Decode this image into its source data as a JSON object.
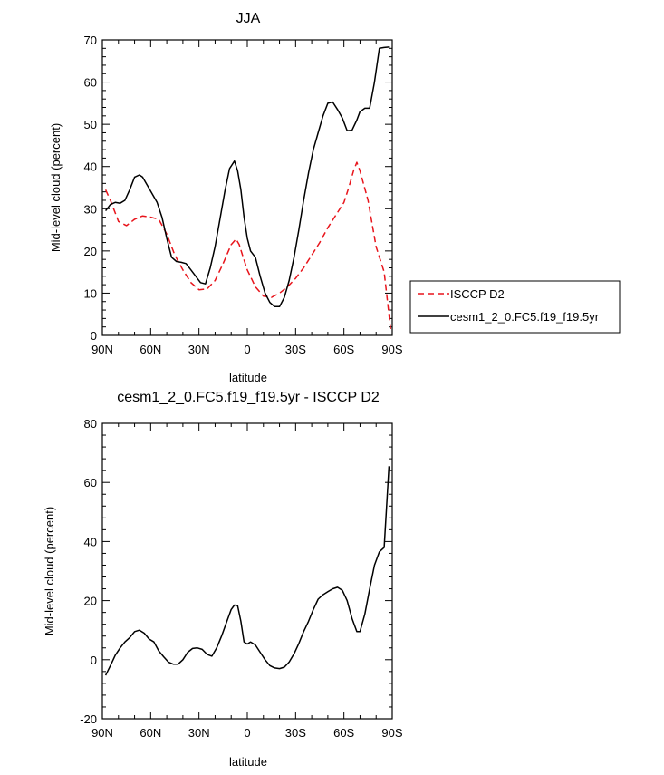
{
  "chart_data": [
    {
      "type": "line",
      "title": "JJA",
      "xlabel": "latitude",
      "ylabel": "Mid-level cloud (percent)",
      "xlim": [
        90,
        -90
      ],
      "ylim": [
        0,
        70
      ],
      "x_ticks": [
        90,
        60,
        30,
        0,
        -30,
        -60,
        -90
      ],
      "x_tick_labels": [
        "90N",
        "60N",
        "30N",
        "0",
        "30S",
        "60S",
        "90S"
      ],
      "y_ticks": [
        0,
        10,
        20,
        30,
        40,
        50,
        60,
        70
      ],
      "y_tick_labels": [
        "0",
        "10",
        "20",
        "30",
        "40",
        "50",
        "60",
        "70"
      ],
      "legend_position": "right",
      "series": [
        {
          "name": "ISCCP D2",
          "color": "#e8141b",
          "dash": "dashed",
          "x": [
            88,
            85,
            80,
            75,
            70,
            65,
            60,
            55,
            50,
            45,
            40,
            35,
            30,
            25,
            20,
            15,
            10,
            7,
            5,
            3,
            0,
            -5,
            -10,
            -15,
            -20,
            -25,
            -30,
            -35,
            -40,
            -45,
            -50,
            -55,
            -60,
            -63,
            -66,
            -68,
            -70,
            -75,
            -80,
            -85,
            -89
          ],
          "y": [
            34.5,
            32,
            27,
            26,
            27.5,
            28.3,
            28,
            27.5,
            24,
            19,
            15.5,
            12.5,
            10.8,
            11,
            13,
            17,
            21.5,
            22.8,
            21.5,
            19,
            15.5,
            11.5,
            9.3,
            9,
            10,
            11.5,
            13.5,
            16,
            19,
            22,
            25.5,
            28.5,
            31.5,
            35,
            39,
            41,
            39,
            32,
            21,
            15,
            1.5
          ]
        },
        {
          "name": "cesm1_2_0.FC5.f19_f19.5yr",
          "color": "#000000",
          "dash": "solid",
          "x": [
            88,
            85,
            82,
            79,
            76,
            73,
            70,
            67,
            65,
            62,
            59,
            56,
            53,
            50,
            47,
            44,
            41,
            38,
            35,
            32,
            29,
            26,
            23,
            20,
            17,
            14,
            11,
            8,
            6,
            4,
            2,
            0,
            -2,
            -5,
            -8,
            -11,
            -14,
            -17,
            -20,
            -23,
            -26,
            -29,
            -32,
            -35,
            -38,
            -41,
            -44,
            -47,
            -50,
            -53,
            -56,
            -59,
            -62,
            -65,
            -68,
            -70,
            -73,
            -76,
            -79,
            -82,
            -85,
            -88
          ],
          "y": [
            29.5,
            31,
            31.5,
            31.3,
            32,
            34.5,
            37.5,
            38,
            37.5,
            35.5,
            33.5,
            31.5,
            28,
            23,
            18.5,
            17.5,
            17.3,
            17,
            15.5,
            14,
            12.5,
            12.2,
            16,
            21,
            27.5,
            34,
            39.5,
            41.3,
            39,
            34.5,
            28,
            23,
            20,
            18.5,
            14,
            10,
            7.8,
            6.8,
            6.8,
            9,
            13,
            18.5,
            25,
            32,
            38.5,
            44,
            48,
            52,
            55,
            55.3,
            53.5,
            51.5,
            48.5,
            48.6,
            51,
            53,
            53.8,
            53.8,
            60,
            68,
            68.2,
            68.3
          ]
        }
      ]
    },
    {
      "type": "line",
      "title": "cesm1_2_0.FC5.f19_f19.5yr - ISCCP D2",
      "xlabel": "latitude",
      "ylabel": "Mid-level cloud (percent)",
      "xlim": [
        90,
        -90
      ],
      "ylim": [
        -20,
        80
      ],
      "x_ticks": [
        90,
        60,
        30,
        0,
        -30,
        -60,
        -90
      ],
      "x_tick_labels": [
        "90N",
        "60N",
        "30N",
        "0",
        "30S",
        "60S",
        "90S"
      ],
      "y_ticks": [
        -20,
        0,
        20,
        40,
        60,
        80
      ],
      "y_tick_labels": [
        "-20",
        "0",
        "20",
        "40",
        "60",
        "80"
      ],
      "series": [
        {
          "color": "#000000",
          "dash": "solid",
          "x": [
            88,
            85,
            82,
            79,
            76,
            73,
            70,
            67,
            64,
            61,
            58,
            55,
            52,
            49,
            46,
            43,
            40,
            37,
            34,
            31,
            28,
            25,
            22,
            19,
            16,
            13,
            10,
            8,
            6,
            4,
            2,
            0,
            -2,
            -5,
            -8,
            -11,
            -14,
            -17,
            -20,
            -23,
            -26,
            -29,
            -32,
            -35,
            -38,
            -41,
            -44,
            -47,
            -50,
            -53,
            -56,
            -59,
            -62,
            -65,
            -68,
            -70,
            -73,
            -76,
            -79,
            -82,
            -85,
            -88
          ],
          "y": [
            -5.3,
            -2,
            1.5,
            4,
            6,
            7.5,
            9.5,
            10,
            9,
            7,
            6,
            3,
            1,
            -0.8,
            -1.5,
            -1.5,
            0,
            2.5,
            3.8,
            4,
            3.5,
            1.8,
            1.2,
            4,
            8,
            12.5,
            17,
            18.5,
            18.3,
            13,
            6,
            5.3,
            6,
            5,
            2.5,
            0,
            -2,
            -2.8,
            -3,
            -2.5,
            -0.8,
            2,
            5.5,
            9.5,
            13,
            17,
            20.5,
            22,
            23,
            24,
            24.5,
            23.5,
            20,
            14,
            9.5,
            9.5,
            15.5,
            24,
            32,
            36.5,
            38,
            65.5
          ]
        }
      ]
    }
  ]
}
